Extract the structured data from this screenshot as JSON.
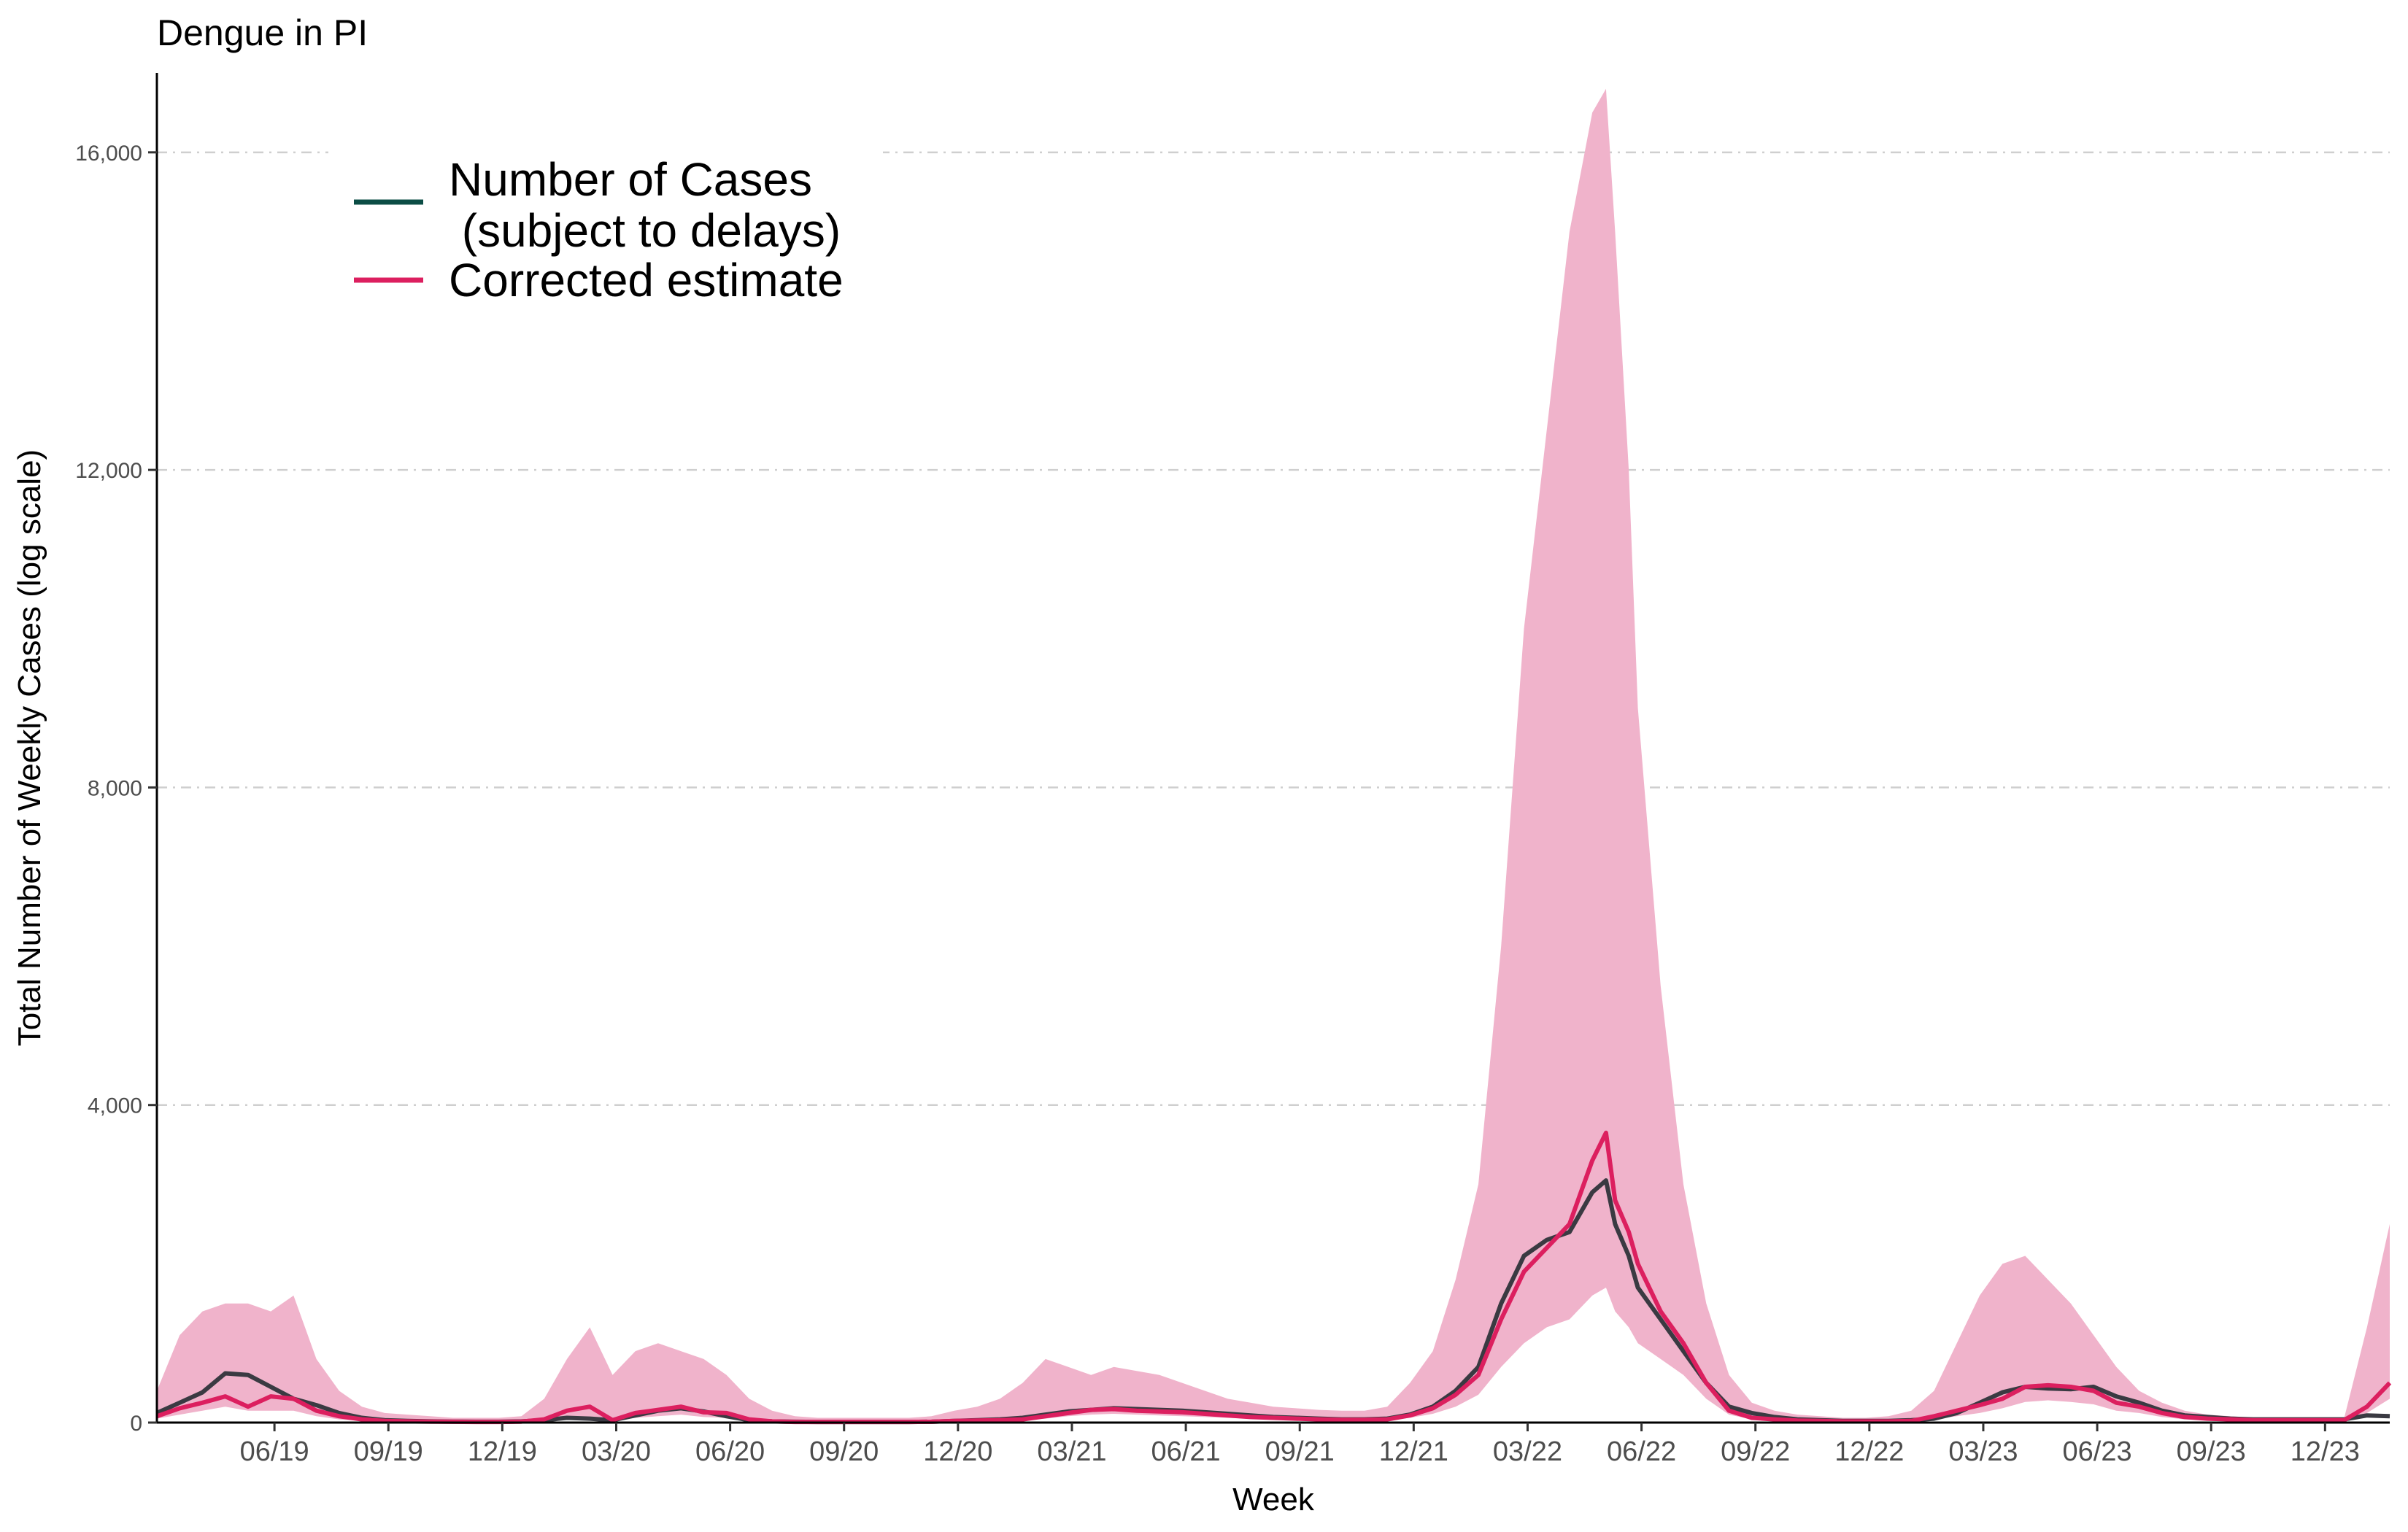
{
  "chart_data": {
    "type": "line",
    "title": "Dengue in PI",
    "xlabel": "Week",
    "ylabel": "Total Number of Weekly Cases (log scale)",
    "ylim": [
      0,
      17000
    ],
    "yticks": [
      0,
      4000,
      8000,
      12000,
      16000
    ],
    "ytick_labels": [
      "0",
      "4,000",
      "8,000",
      "12,000",
      "16,000"
    ],
    "xlim": [
      2019.2,
      2024.1
    ],
    "xticks": [
      2019.458,
      2019.708,
      2019.958,
      2020.208,
      2020.458,
      2020.708,
      2020.958,
      2021.208,
      2021.458,
      2021.708,
      2021.958,
      2022.208,
      2022.458,
      2022.708,
      2022.958,
      2023.208,
      2023.458,
      2023.708,
      2023.958
    ],
    "xtick_labels": [
      "06/19",
      "09/19",
      "12/19",
      "03/20",
      "06/20",
      "09/20",
      "12/20",
      "03/21",
      "06/21",
      "09/21",
      "12/21",
      "03/22",
      "06/22",
      "09/22",
      "12/22",
      "03/23",
      "06/23",
      "09/23",
      "12/23"
    ],
    "grid": {
      "horizontal": true,
      "vertical": false
    },
    "legend": {
      "placement": "top-left"
    },
    "x": [
      2019.2,
      2019.25,
      2019.3,
      2019.35,
      2019.4,
      2019.45,
      2019.5,
      2019.55,
      2019.6,
      2019.65,
      2019.7,
      2019.75,
      2019.8,
      2019.85,
      2019.9,
      2019.95,
      2020.0,
      2020.05,
      2020.1,
      2020.15,
      2020.2,
      2020.25,
      2020.3,
      2020.35,
      2020.4,
      2020.45,
      2020.5,
      2020.55,
      2020.6,
      2020.65,
      2020.7,
      2020.75,
      2020.8,
      2020.85,
      2020.9,
      2020.95,
      2021.0,
      2021.05,
      2021.1,
      2021.15,
      2021.2,
      2021.25,
      2021.3,
      2021.35,
      2021.4,
      2021.45,
      2021.5,
      2021.55,
      2021.6,
      2021.65,
      2021.7,
      2021.75,
      2021.8,
      2021.85,
      2021.9,
      2021.95,
      2022.0,
      2022.05,
      2022.1,
      2022.15,
      2022.2,
      2022.25,
      2022.3,
      2022.35,
      2022.38,
      2022.4,
      2022.43,
      2022.45,
      2022.5,
      2022.55,
      2022.6,
      2022.65,
      2022.7,
      2022.75,
      2022.8,
      2022.85,
      2022.9,
      2022.95,
      2023.0,
      2023.05,
      2023.1,
      2023.15,
      2023.2,
      2023.25,
      2023.3,
      2023.35,
      2023.4,
      2023.45,
      2023.5,
      2023.55,
      2023.6,
      2023.65,
      2023.7,
      2023.75,
      2023.8,
      2023.85,
      2023.9,
      2023.95,
      2024.0,
      2024.05,
      2024.1
    ],
    "series": [
      {
        "name": "Number of Cases\n (subject to delays)",
        "color": "#0b4d45",
        "values": [
          120,
          250,
          380,
          620,
          600,
          450,
          300,
          220,
          120,
          60,
          30,
          20,
          15,
          12,
          10,
          10,
          15,
          30,
          60,
          50,
          30,
          90,
          150,
          180,
          140,
          80,
          30,
          15,
          10,
          8,
          8,
          8,
          8,
          8,
          10,
          20,
          30,
          40,
          60,
          100,
          140,
          160,
          180,
          170,
          160,
          150,
          130,
          110,
          90,
          70,
          60,
          50,
          40,
          40,
          50,
          100,
          200,
          400,
          700,
          1500,
          2100,
          2300,
          2400,
          2900,
          3050,
          2500,
          2100,
          1700,
          1300,
          900,
          500,
          200,
          120,
          70,
          40,
          30,
          20,
          20,
          20,
          30,
          50,
          120,
          250,
          380,
          450,
          430,
          420,
          450,
          330,
          250,
          150,
          90,
          70,
          50,
          40,
          40,
          40,
          40,
          40,
          90,
          80
        ]
      },
      {
        "name": "Corrected estimate",
        "color": "#dc1f5f",
        "values": [
          80,
          180,
          250,
          330,
          200,
          330,
          300,
          150,
          80,
          40,
          20,
          15,
          12,
          10,
          8,
          8,
          12,
          40,
          150,
          200,
          30,
          120,
          160,
          200,
          130,
          120,
          40,
          15,
          8,
          8,
          8,
          8,
          8,
          8,
          10,
          20,
          25,
          30,
          40,
          80,
          120,
          160,
          170,
          150,
          140,
          130,
          110,
          90,
          70,
          60,
          50,
          40,
          35,
          35,
          40,
          90,
          180,
          350,
          600,
          1300,
          1900,
          2200,
          2500,
          3300,
          3650,
          2800,
          2400,
          2000,
          1400,
          1000,
          500,
          150,
          60,
          40,
          25,
          20,
          15,
          15,
          15,
          20,
          80,
          150,
          220,
          300,
          450,
          470,
          450,
          400,
          250,
          200,
          120,
          70,
          50,
          40,
          30,
          30,
          30,
          30,
          30,
          200,
          500
        ]
      }
    ],
    "interval": {
      "name": "uncertainty band",
      "color": "#f0b3cb",
      "lower": [
        50,
        100,
        150,
        200,
        150,
        150,
        150,
        80,
        40,
        20,
        10,
        8,
        6,
        5,
        5,
        5,
        8,
        20,
        50,
        60,
        20,
        60,
        80,
        100,
        70,
        60,
        20,
        8,
        5,
        5,
        5,
        5,
        5,
        5,
        5,
        10,
        15,
        20,
        30,
        50,
        80,
        100,
        110,
        100,
        90,
        80,
        70,
        60,
        50,
        40,
        35,
        30,
        25,
        25,
        30,
        60,
        110,
        200,
        350,
        700,
        1000,
        1200,
        1300,
        1600,
        1700,
        1400,
        1200,
        1000,
        800,
        600,
        300,
        100,
        40,
        25,
        15,
        12,
        10,
        10,
        10,
        12,
        40,
        80,
        120,
        180,
        260,
        280,
        260,
        230,
        150,
        120,
        70,
        40,
        30,
        25,
        20,
        20,
        20,
        20,
        20,
        120,
        300
      ],
      "upper": [
        400,
        1100,
        1400,
        1500,
        1500,
        1400,
        1600,
        800,
        400,
        200,
        120,
        100,
        80,
        60,
        60,
        60,
        80,
        300,
        800,
        1200,
        600,
        900,
        1000,
        900,
        800,
        600,
        300,
        150,
        80,
        60,
        60,
        60,
        60,
        60,
        80,
        150,
        200,
        300,
        500,
        800,
        700,
        600,
        700,
        650,
        600,
        500,
        400,
        300,
        250,
        200,
        180,
        160,
        150,
        150,
        200,
        500,
        900,
        1800,
        3000,
        6000,
        10000,
        12500,
        15000,
        16500,
        16800,
        15000,
        12000,
        9000,
        5500,
        3000,
        1500,
        600,
        250,
        150,
        100,
        80,
        60,
        60,
        80,
        150,
        400,
        1000,
        1600,
        2000,
        2100,
        1800,
        1500,
        1100,
        700,
        400,
        250,
        150,
        100,
        80,
        60,
        60,
        60,
        60,
        60,
        1200,
        2500
      ]
    }
  }
}
